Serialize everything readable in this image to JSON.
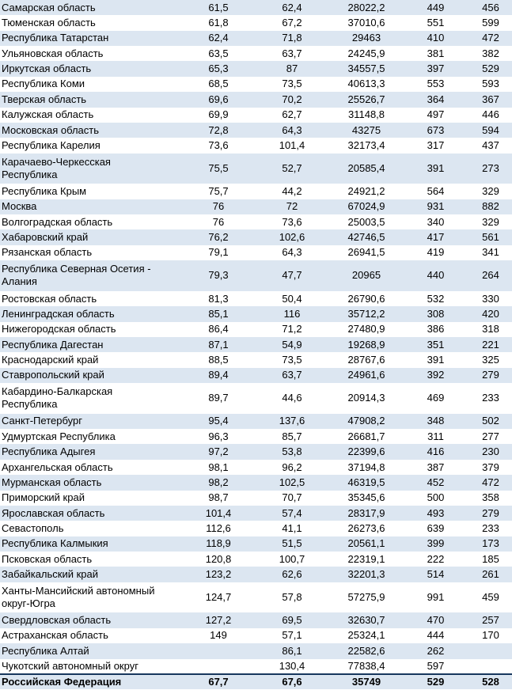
{
  "colors": {
    "band_color": "#dce6f1",
    "total_border_color": "#17375d",
    "text_color": "#000000"
  },
  "chart_data": {
    "type": "table",
    "title": "",
    "columns": [
      "region",
      "value_1",
      "value_2",
      "value_3",
      "value_4",
      "value_5"
    ],
    "rows": [
      {
        "name": "Самарская область",
        "values": [
          "61,5",
          "62,4",
          "28022,2",
          "449",
          "456"
        ]
      },
      {
        "name": "Тюменская область",
        "values": [
          "61,8",
          "67,2",
          "37010,6",
          "551",
          "599"
        ]
      },
      {
        "name": "Республика Татарстан",
        "values": [
          "62,4",
          "71,8",
          "29463",
          "410",
          "472"
        ]
      },
      {
        "name": "Ульяновская область",
        "values": [
          "63,5",
          "63,7",
          "24245,9",
          "381",
          "382"
        ]
      },
      {
        "name": "Иркутская область",
        "values": [
          "65,3",
          "87",
          "34557,5",
          "397",
          "529"
        ]
      },
      {
        "name": "Республика Коми",
        "values": [
          "68,5",
          "73,5",
          "40613,3",
          "553",
          "593"
        ]
      },
      {
        "name": "Тверская область",
        "values": [
          "69,6",
          "70,2",
          "25526,7",
          "364",
          "367"
        ]
      },
      {
        "name": "Калужская область",
        "values": [
          "69,9",
          "62,7",
          "31148,8",
          "497",
          "446"
        ]
      },
      {
        "name": "Московская область",
        "values": [
          "72,8",
          "64,3",
          "43275",
          "673",
          "594"
        ]
      },
      {
        "name": "Республика Карелия",
        "values": [
          "73,6",
          "101,4",
          "32173,4",
          "317",
          "437"
        ]
      },
      {
        "name": "Карачаево-Черкесская\nРеспублика",
        "values": [
          "75,5",
          "52,7",
          "20585,4",
          "391",
          "273"
        ]
      },
      {
        "name": "Республика Крым",
        "values": [
          "75,7",
          "44,2",
          "24921,2",
          "564",
          "329"
        ]
      },
      {
        "name": "Москва",
        "values": [
          "76",
          "72",
          "67024,9",
          "931",
          "882"
        ]
      },
      {
        "name": "Волгоградская область",
        "values": [
          "76",
          "73,6",
          "25003,5",
          "340",
          "329"
        ]
      },
      {
        "name": "Хабаровский край",
        "values": [
          "76,2",
          "102,6",
          "42746,5",
          "417",
          "561"
        ]
      },
      {
        "name": "Рязанская область",
        "values": [
          "79,1",
          "64,3",
          "26941,5",
          "419",
          "341"
        ]
      },
      {
        "name": "Республика Северная Осетия -\nАлания",
        "values": [
          "79,3",
          "47,7",
          "20965",
          "440",
          "264"
        ]
      },
      {
        "name": "Ростовская область",
        "values": [
          "81,3",
          "50,4",
          "26790,6",
          "532",
          "330"
        ]
      },
      {
        "name": "Ленинградская область",
        "values": [
          "85,1",
          "116",
          "35712,2",
          "308",
          "420"
        ]
      },
      {
        "name": "Нижегородская область",
        "values": [
          "86,4",
          "71,2",
          "27480,9",
          "386",
          "318"
        ]
      },
      {
        "name": "Республика Дагестан",
        "values": [
          "87,1",
          "54,9",
          "19268,9",
          "351",
          "221"
        ]
      },
      {
        "name": "Краснодарский край",
        "values": [
          "88,5",
          "73,5",
          "28767,6",
          "391",
          "325"
        ]
      },
      {
        "name": "Ставропольский край",
        "values": [
          "89,4",
          "63,7",
          "24961,6",
          "392",
          "279"
        ]
      },
      {
        "name": "Кабардино-Балкарская\nРеспублика",
        "values": [
          "89,7",
          "44,6",
          "20914,3",
          "469",
          "233"
        ]
      },
      {
        "name": "Санкт-Петербург",
        "values": [
          "95,4",
          "137,6",
          "47908,2",
          "348",
          "502"
        ]
      },
      {
        "name": "Удмуртская Республика",
        "values": [
          "96,3",
          "85,7",
          "26681,7",
          "311",
          "277"
        ]
      },
      {
        "name": "Республика Адыгея",
        "values": [
          "97,2",
          "53,8",
          "22399,6",
          "416",
          "230"
        ]
      },
      {
        "name": "Архангельская область",
        "values": [
          "98,1",
          "96,2",
          "37194,8",
          "387",
          "379"
        ]
      },
      {
        "name": "Мурманская область",
        "values": [
          "98,2",
          "102,5",
          "46319,5",
          "452",
          "472"
        ]
      },
      {
        "name": "Приморский край",
        "values": [
          "98,7",
          "70,7",
          "35345,6",
          "500",
          "358"
        ]
      },
      {
        "name": "Ярославская область",
        "values": [
          "101,4",
          "57,4",
          "28317,9",
          "493",
          "279"
        ]
      },
      {
        "name": "Севастополь",
        "values": [
          "112,6",
          "41,1",
          "26273,6",
          "639",
          "233"
        ]
      },
      {
        "name": "Республика Калмыкия",
        "values": [
          "118,9",
          "51,5",
          "20561,1",
          "399",
          "173"
        ]
      },
      {
        "name": "Псковская область",
        "values": [
          "120,8",
          "100,7",
          "22319,1",
          "222",
          "185"
        ]
      },
      {
        "name": "Забайкальский край",
        "values": [
          "123,2",
          "62,6",
          "32201,3",
          "514",
          "261"
        ]
      },
      {
        "name": "Ханты-Мансийский автономный\nокруг-Югра",
        "values": [
          "124,7",
          "57,8",
          "57275,9",
          "991",
          "459"
        ]
      },
      {
        "name": "Свердловская область",
        "values": [
          "127,2",
          "69,5",
          "32630,7",
          "470",
          "257"
        ]
      },
      {
        "name": "Астраханская область",
        "values": [
          "149",
          "57,1",
          "25324,1",
          "444",
          "170"
        ]
      },
      {
        "name": "Республика Алтай",
        "values": [
          "",
          "86,1",
          "22582,6",
          "262",
          ""
        ]
      },
      {
        "name": "Чукотский автономный округ",
        "values": [
          "",
          "130,4",
          "77838,4",
          "597",
          ""
        ]
      },
      {
        "name": "Российская Федерация",
        "values": [
          "67,7",
          "67,6",
          "35749",
          "529",
          "528"
        ],
        "total": true
      }
    ]
  }
}
